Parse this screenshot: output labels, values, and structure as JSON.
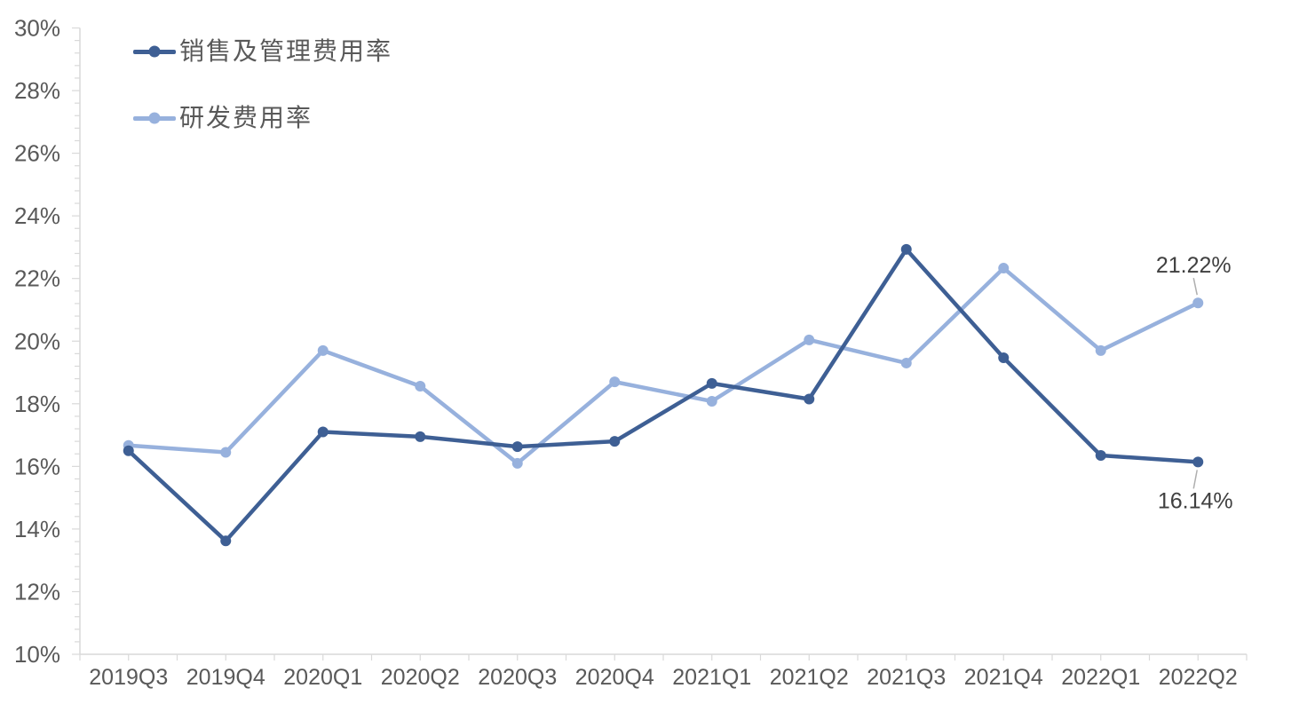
{
  "chart_data": {
    "type": "line",
    "title": "",
    "categories": [
      "2019Q3",
      "2019Q4",
      "2020Q1",
      "2020Q2",
      "2020Q3",
      "2020Q4",
      "2021Q1",
      "2021Q2",
      "2021Q3",
      "2021Q4",
      "2022Q1",
      "2022Q2"
    ],
    "series": [
      {
        "name": "销售及管理费用率",
        "color": "#3E5F94",
        "values": [
          16.5,
          13.62,
          17.1,
          16.95,
          16.63,
          16.8,
          18.65,
          18.15,
          22.93,
          19.47,
          16.35,
          16.14
        ]
      },
      {
        "name": "研发费用率",
        "color": "#97B1DD",
        "values": [
          16.67,
          16.45,
          19.7,
          18.56,
          16.1,
          18.7,
          18.08,
          20.04,
          19.3,
          22.33,
          19.7,
          21.22
        ]
      }
    ],
    "draw_order": [
      1,
      0
    ],
    "ylim": [
      10,
      30
    ],
    "y_major_step": 2,
    "y_minor_step": 0.4,
    "y_tick_labels": [
      "10%",
      "12%",
      "14%",
      "16%",
      "18%",
      "20%",
      "22%",
      "24%",
      "26%",
      "28%",
      "30%"
    ],
    "grid": false,
    "legend_position": "top-left",
    "annotations": [
      {
        "text": "21.22%",
        "series_index": 1,
        "category_index": 11,
        "placement": "above"
      },
      {
        "text": "16.14%",
        "series_index": 0,
        "category_index": 11,
        "placement": "below"
      }
    ],
    "style": {
      "axis_color": "#D9D9D9",
      "tick_color": "#BFBFBF",
      "axis_label_color": "#595959",
      "annotation_text_color": "#404040",
      "leader_line_color": "#AFAFAF",
      "background": "#FFFFFF"
    }
  }
}
